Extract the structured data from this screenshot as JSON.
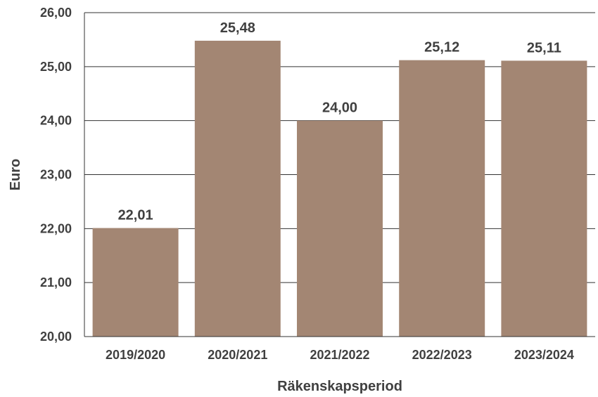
{
  "chart_data": {
    "type": "bar",
    "categories": [
      "2019/2020",
      "2020/2021",
      "2021/2022",
      "2022/2023",
      "2023/2024"
    ],
    "values": [
      22.01,
      25.48,
      24.0,
      25.12,
      25.11
    ],
    "value_labels": [
      "22,01",
      "25,48",
      "24,00",
      "25,12",
      "25,11"
    ],
    "xlabel": "Räkenskapsperiod",
    "ylabel": "Euro",
    "ylim": [
      20,
      26
    ],
    "yticks": [
      20,
      21,
      22,
      23,
      24,
      25,
      26
    ],
    "ytick_labels": [
      "20,00",
      "21,00",
      "22,00",
      "23,00",
      "24,00",
      "25,00",
      "26,00"
    ],
    "grid": true,
    "legend": "none",
    "bar_color": "#A38673",
    "grid_color": "#333333",
    "text_color": "#404040"
  }
}
